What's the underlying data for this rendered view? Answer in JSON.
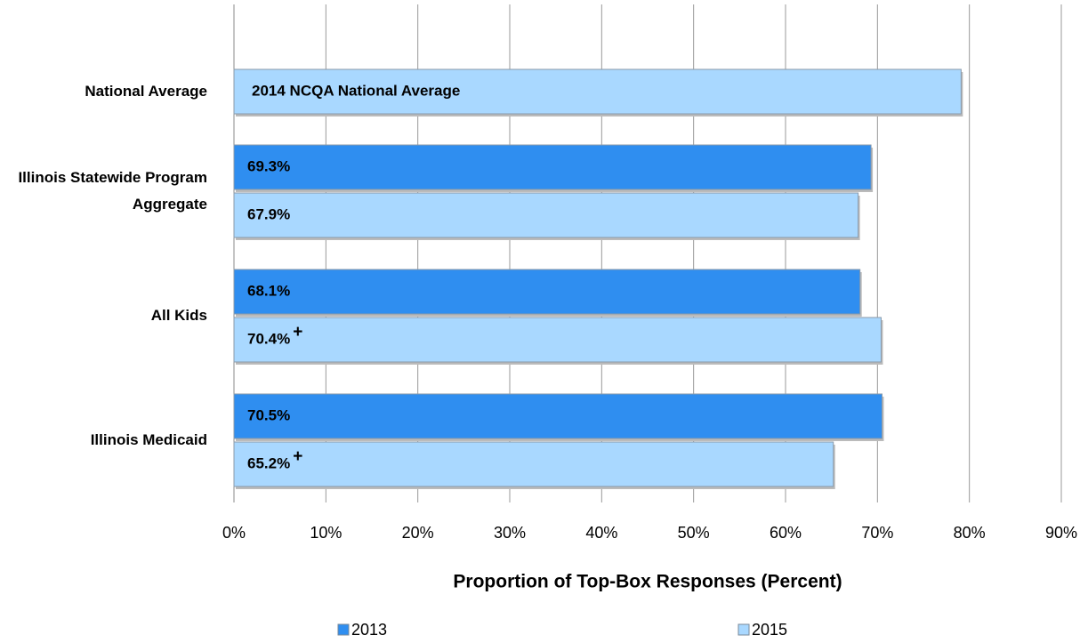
{
  "chart_data": {
    "type": "hbar",
    "categories": [
      "National Average",
      "Illinois Statewide Program Aggregate",
      "All Kids",
      "Illinois Medicaid"
    ],
    "series": [
      {
        "name": "2013",
        "color": "#2f8ef0",
        "values": [
          null,
          69.3,
          68.1,
          70.5
        ],
        "value_labels": [
          null,
          "69.3%",
          "68.1%",
          "70.5%"
        ],
        "flags": [
          null,
          null,
          null,
          null
        ]
      },
      {
        "name": "2015",
        "color": "#a9d8ff",
        "values": [
          null,
          67.9,
          70.4,
          65.2
        ],
        "value_labels": [
          null,
          "67.9%",
          "70.4%",
          "65.2%"
        ],
        "flags": [
          null,
          null,
          "+",
          "+"
        ]
      }
    ],
    "reference": {
      "category": 0,
      "value": 79.1,
      "label": "2014 NCQA National Average",
      "color": "#a9d8ff"
    },
    "xlim": [
      0,
      90
    ],
    "xticks": [
      {
        "value": 0,
        "label": "0%"
      },
      {
        "value": 10,
        "label": "10%"
      },
      {
        "value": 20,
        "label": "20%"
      },
      {
        "value": 30,
        "label": "30%"
      },
      {
        "value": 40,
        "label": "40%"
      },
      {
        "value": 50,
        "label": "50%"
      },
      {
        "value": 60,
        "label": "60%"
      },
      {
        "value": 70,
        "label": "70%"
      },
      {
        "value": 80,
        "label": "80%"
      },
      {
        "value": 90,
        "label": "90%"
      }
    ],
    "xlabel": "Proportion of Top-Box Responses (Percent)",
    "grid": true,
    "legend": "bottom"
  }
}
